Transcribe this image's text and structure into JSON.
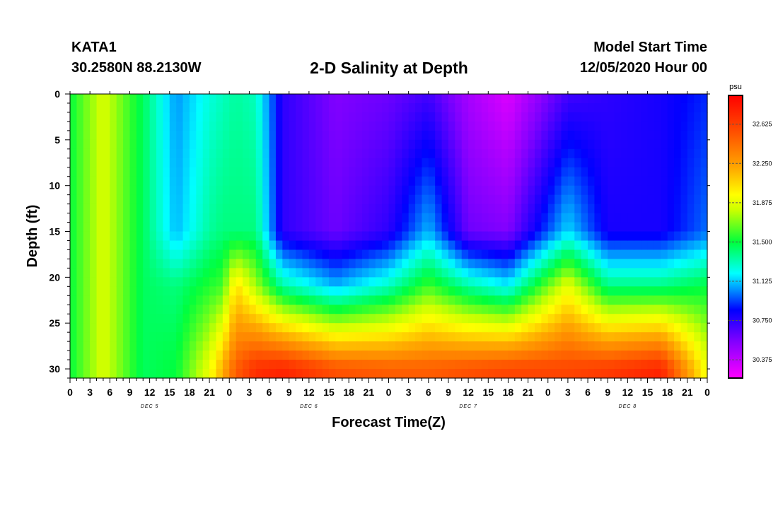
{
  "header": {
    "station_id": "KATA1",
    "coords": "30.2580N 88.2130W",
    "title": "2-D Salinity at Depth",
    "start_label": "Model Start Time",
    "start_value": "12/05/2020 Hour 00"
  },
  "chart_data": {
    "type": "heatmap",
    "title": "2-D Salinity at Depth",
    "xlabel": "Forecast Time(Z)",
    "ylabel": "Depth (ft)",
    "x_hours_range": [
      0,
      96
    ],
    "ylim": [
      0,
      31
    ],
    "y_inverted": true,
    "x_tick_labels": [
      "0",
      "3",
      "6",
      "9",
      "12",
      "15",
      "18",
      "21",
      "0",
      "3",
      "6",
      "9",
      "12",
      "15",
      "18",
      "21",
      "0",
      "3",
      "6",
      "9",
      "12",
      "15",
      "18",
      "21",
      "0",
      "3",
      "6",
      "9",
      "12",
      "15",
      "18",
      "21",
      "0"
    ],
    "y_ticks": [
      0,
      5,
      10,
      15,
      20,
      25,
      30
    ],
    "day_labels": [
      {
        "label": "DEC 5",
        "hour": 12
      },
      {
        "label": "DEC 6",
        "hour": 36
      },
      {
        "label": "DEC 7",
        "hour": 60
      },
      {
        "label": "DEC 8",
        "hour": 84
      }
    ],
    "colorbar": {
      "unit": "psu",
      "min": 30.2,
      "max": 32.9,
      "tick_labels": [
        "32.625",
        "32.250",
        "31.875",
        "31.500",
        "31.125",
        "30.750",
        "30.375"
      ],
      "tick_values": [
        32.625,
        32.25,
        31.875,
        31.5,
        31.125,
        30.75,
        30.375
      ]
    },
    "salinity_profiles": [
      {
        "hour": 0,
        "psu": [
          31.5,
          31.5,
          31.5,
          31.5
        ]
      },
      {
        "hour": 5,
        "psu": [
          31.85,
          31.85,
          31.85,
          31.85
        ]
      },
      {
        "hour": 11,
        "psu": [
          31.45,
          31.45,
          31.45,
          31.45
        ]
      },
      {
        "hour": 16,
        "psu": [
          31.05,
          31.1,
          31.4,
          31.5
        ]
      },
      {
        "hour": 21,
        "psu": [
          31.25,
          31.35,
          31.55,
          31.9
        ]
      },
      {
        "hour": 23,
        "psu": [
          31.3,
          31.4,
          31.6,
          32.2
        ]
      },
      {
        "hour": 25,
        "psu": [
          31.35,
          31.4,
          32.05,
          32.5
        ]
      },
      {
        "hour": 28,
        "psu": [
          31.3,
          31.4,
          31.75,
          32.7
        ]
      },
      {
        "hour": 32,
        "psu": [
          30.75,
          30.75,
          31.35,
          32.75
        ]
      },
      {
        "hour": 40,
        "psu": [
          30.55,
          30.6,
          31.1,
          32.55
        ]
      },
      {
        "hour": 48,
        "psu": [
          30.6,
          30.75,
          31.3,
          32.5
        ]
      },
      {
        "hour": 54,
        "psu": [
          30.7,
          31.1,
          31.6,
          32.5
        ]
      },
      {
        "hour": 60,
        "psu": [
          30.45,
          30.6,
          31.35,
          32.55
        ]
      },
      {
        "hour": 66,
        "psu": [
          30.3,
          30.55,
          31.2,
          32.6
        ]
      },
      {
        "hour": 75,
        "psu": [
          30.7,
          31.15,
          31.9,
          32.6
        ]
      },
      {
        "hour": 81,
        "psu": [
          30.75,
          30.8,
          31.4,
          32.65
        ]
      },
      {
        "hour": 89,
        "psu": [
          30.8,
          30.8,
          31.4,
          32.75
        ]
      },
      {
        "hour": 96,
        "psu": [
          30.9,
          31.0,
          31.5,
          31.9
        ]
      }
    ],
    "profile_depths": [
      0,
      15,
      21,
      30
    ]
  }
}
